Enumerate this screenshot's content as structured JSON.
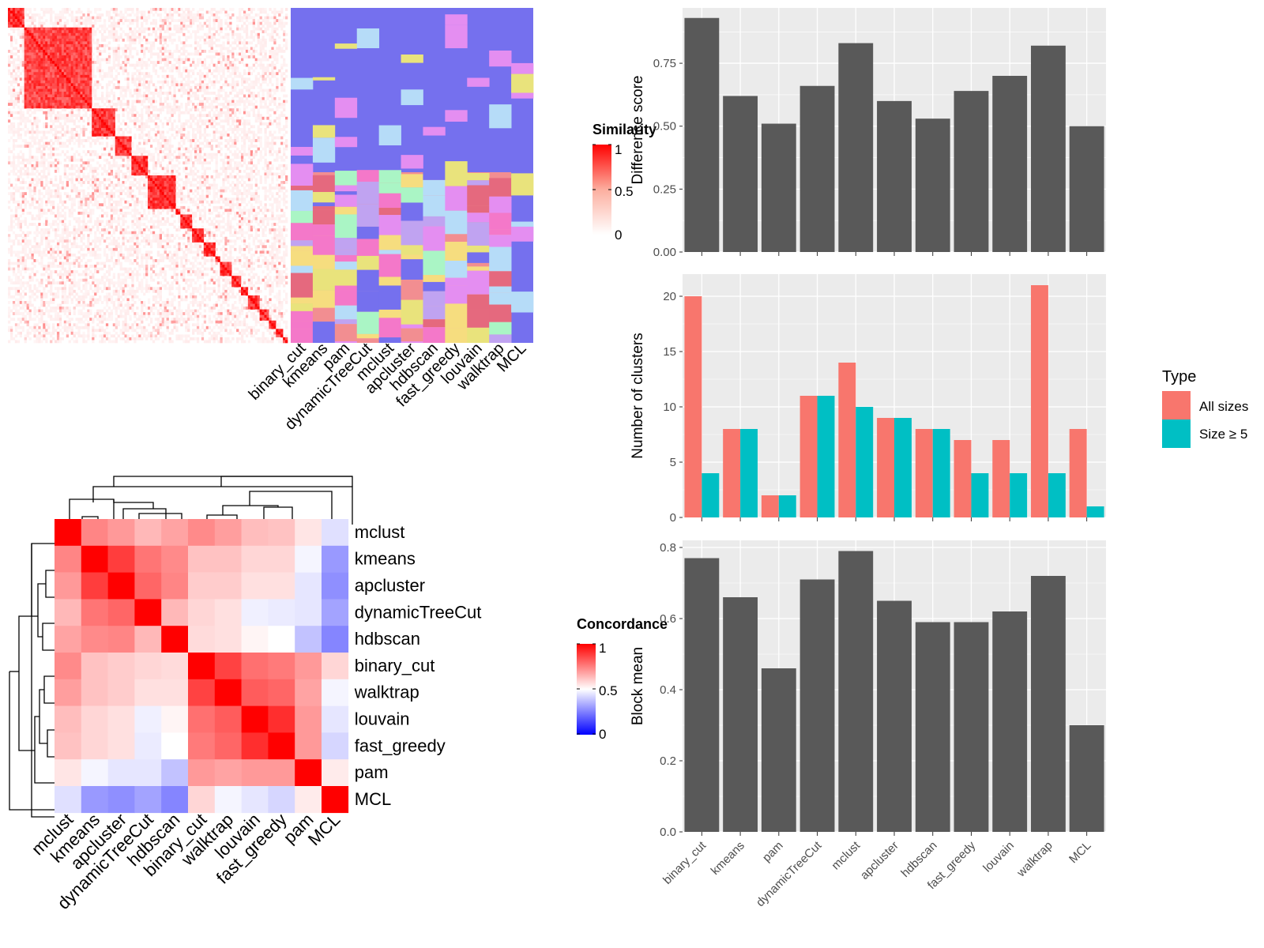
{
  "colors": {
    "panel_bg": "#ebebeb",
    "grid_line": "#ffffff",
    "bar_fill": "#595959",
    "all_sizes": "#f8766d",
    "size_ge_5": "#00bfc4",
    "heat_high": "#ff0000",
    "heat_mid": "#ffffff",
    "heat_low": "#0000ff"
  },
  "similarity_legend": {
    "title": "Similarity",
    "ticks": [
      "1",
      "0.5",
      "0"
    ]
  },
  "concordance_legend": {
    "title": "Concordance",
    "ticks": [
      "1",
      "0.5",
      "0"
    ]
  },
  "membership_methods": [
    "binary_cut",
    "kmeans",
    "pam",
    "dynamicTreeCut",
    "mclust",
    "apcluster",
    "hdbscan",
    "fast_greedy",
    "louvain",
    "walktrap",
    "MCL"
  ],
  "type_legend": {
    "title": "Type",
    "items": [
      "All sizes",
      "Size ≥ 5"
    ]
  },
  "chart_data": [
    {
      "type": "heatmap",
      "description": "similarity matrix of terms ordered by binary_cut clusters",
      "color_scale": {
        "low": 0,
        "mid": 0.5,
        "high": 1
      },
      "blocks": [
        0.06,
        0.3,
        0.38,
        0.44,
        0.5,
        0.6,
        0.62,
        0.66,
        0.7,
        0.74,
        0.76,
        0.8,
        0.83,
        0.86,
        0.9,
        0.93,
        0.96,
        0.98
      ]
    },
    {
      "type": "heatmap",
      "title": "",
      "rows": [
        "mclust",
        "kmeans",
        "apcluster",
        "dynamicTreeCut",
        "hdbscan",
        "binary_cut",
        "walktrap",
        "louvain",
        "fast_greedy",
        "pam",
        "MCL"
      ],
      "columns": [
        "mclust",
        "kmeans",
        "apcluster",
        "dynamicTreeCut",
        "hdbscan",
        "binary_cut",
        "walktrap",
        "louvain",
        "fast_greedy",
        "pam",
        "MCL"
      ],
      "values": [
        [
          1.0,
          0.74,
          0.7,
          0.64,
          0.68,
          0.73,
          0.69,
          0.63,
          0.62,
          0.55,
          0.44
        ],
        [
          0.74,
          1.0,
          0.88,
          0.77,
          0.73,
          0.62,
          0.62,
          0.58,
          0.58,
          0.48,
          0.3
        ],
        [
          0.7,
          0.88,
          1.0,
          0.8,
          0.74,
          0.6,
          0.6,
          0.56,
          0.56,
          0.45,
          0.28
        ],
        [
          0.64,
          0.77,
          0.8,
          1.0,
          0.64,
          0.58,
          0.56,
          0.47,
          0.46,
          0.45,
          0.32
        ],
        [
          0.68,
          0.73,
          0.74,
          0.64,
          1.0,
          0.57,
          0.56,
          0.52,
          0.5,
          0.38,
          0.26
        ],
        [
          0.73,
          0.62,
          0.6,
          0.58,
          0.57,
          1.0,
          0.87,
          0.78,
          0.76,
          0.7,
          0.58
        ],
        [
          0.69,
          0.62,
          0.6,
          0.56,
          0.56,
          0.87,
          1.0,
          0.82,
          0.8,
          0.68,
          0.48
        ],
        [
          0.63,
          0.58,
          0.56,
          0.47,
          0.52,
          0.78,
          0.82,
          1.0,
          0.91,
          0.7,
          0.45
        ],
        [
          0.62,
          0.58,
          0.56,
          0.46,
          0.5,
          0.76,
          0.8,
          0.91,
          1.0,
          0.7,
          0.42
        ],
        [
          0.55,
          0.48,
          0.45,
          0.45,
          0.38,
          0.7,
          0.68,
          0.7,
          0.7,
          1.0,
          0.54
        ],
        [
          0.44,
          0.3,
          0.28,
          0.32,
          0.26,
          0.58,
          0.48,
          0.45,
          0.42,
          0.54,
          1.0
        ]
      ]
    },
    {
      "type": "bar",
      "categories": [
        "binary_cut",
        "kmeans",
        "pam",
        "dynamicTreeCut",
        "mclust",
        "apcluster",
        "hdbscan",
        "fast_greedy",
        "louvain",
        "walktrap",
        "MCL"
      ],
      "values": [
        0.93,
        0.62,
        0.51,
        0.66,
        0.83,
        0.6,
        0.53,
        0.64,
        0.7,
        0.82,
        0.5
      ],
      "ylabel": "Difference score",
      "ylim": [
        0,
        0.97
      ],
      "yticks": [
        "0.00",
        "0.25",
        "0.50",
        "0.75"
      ]
    },
    {
      "type": "bar",
      "categories": [
        "binary_cut",
        "kmeans",
        "pam",
        "dynamicTreeCut",
        "mclust",
        "apcluster",
        "hdbscan",
        "fast_greedy",
        "louvain",
        "walktrap",
        "MCL"
      ],
      "series": [
        {
          "name": "All sizes",
          "values": [
            20,
            8,
            2,
            11,
            14,
            9,
            8,
            7,
            7,
            21,
            8
          ]
        },
        {
          "name": "Size ≥ 5",
          "values": [
            4,
            8,
            2,
            11,
            10,
            9,
            8,
            4,
            4,
            4,
            1
          ]
        }
      ],
      "ylabel": "Number of clusters",
      "ylim": [
        0,
        22
      ],
      "yticks": [
        "0",
        "5",
        "10",
        "15",
        "20"
      ]
    },
    {
      "type": "bar",
      "categories": [
        "binary_cut",
        "kmeans",
        "pam",
        "dynamicTreeCut",
        "mclust",
        "apcluster",
        "hdbscan",
        "fast_greedy",
        "louvain",
        "walktrap",
        "MCL"
      ],
      "values": [
        0.77,
        0.66,
        0.46,
        0.71,
        0.79,
        0.65,
        0.59,
        0.59,
        0.62,
        0.72,
        0.3
      ],
      "ylabel": "Block mean",
      "ylim": [
        0,
        0.82
      ],
      "yticks": [
        "0.0",
        "0.2",
        "0.4",
        "0.6",
        "0.8"
      ]
    }
  ]
}
